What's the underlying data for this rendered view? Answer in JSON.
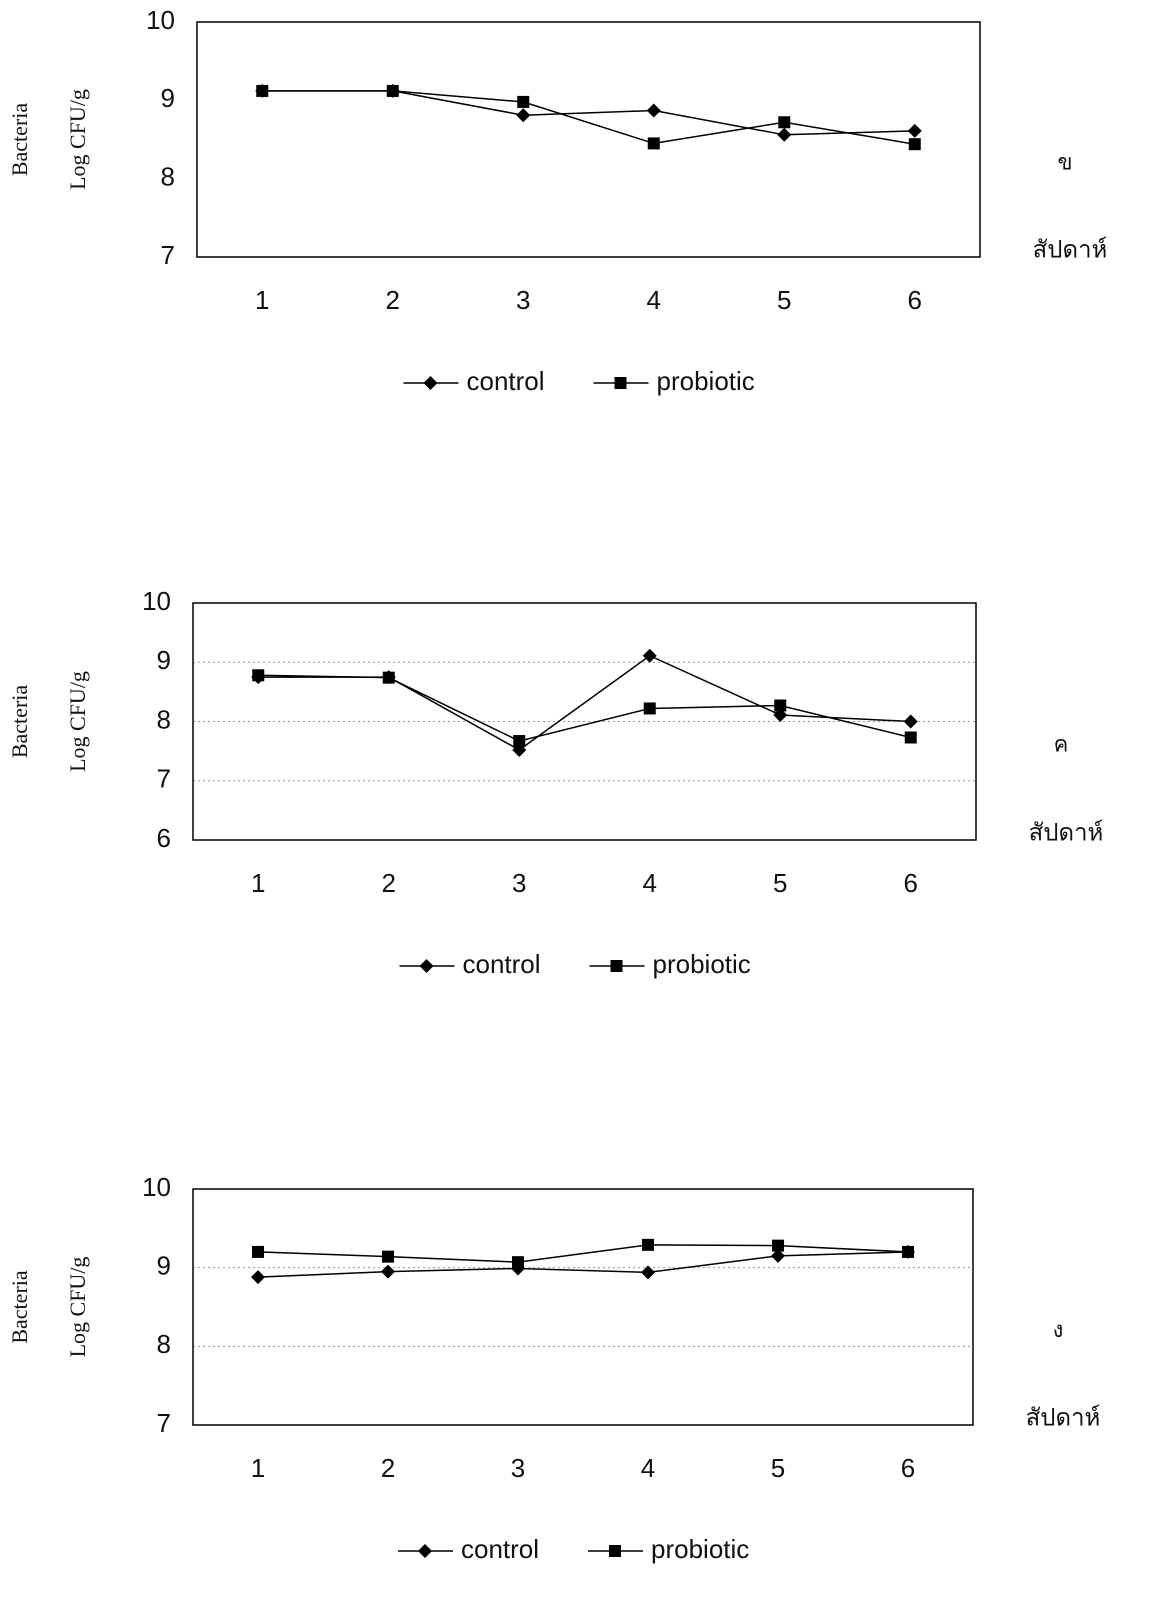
{
  "chart_data": [
    {
      "type": "line",
      "ylabel": [
        "Bacteria",
        "Log CFU/g"
      ],
      "xlabel": "สัปดาห์",
      "panel_label": "ข",
      "categories": [
        "1",
        "2",
        "3",
        "4",
        "5",
        "6"
      ],
      "series": [
        {
          "name": "control",
          "color": "#000000",
          "marker": "diamond",
          "values": [
            9.12,
            9.12,
            8.81,
            8.87,
            8.56,
            8.61
          ]
        },
        {
          "name": "probiotic",
          "color": "#000000",
          "marker": "square",
          "values": [
            9.12,
            9.12,
            8.98,
            8.45,
            8.72,
            8.44
          ]
        }
      ],
      "ylim": [
        7,
        10
      ],
      "yticks": [
        7,
        8,
        9,
        10
      ],
      "grid": false,
      "legend": "bottom"
    },
    {
      "type": "line",
      "ylabel": [
        "Bacteria",
        "Log CFU/g"
      ],
      "xlabel": "สัปดาห์",
      "panel_label": "ค",
      "categories": [
        "1",
        "2",
        "3",
        "4",
        "5",
        "6"
      ],
      "series": [
        {
          "name": "control",
          "color": "#000000",
          "marker": "diamond",
          "values": [
            8.75,
            8.75,
            7.52,
            9.11,
            8.11,
            8.0
          ]
        },
        {
          "name": "probiotic",
          "color": "#000000",
          "marker": "square",
          "values": [
            8.78,
            8.74,
            7.67,
            8.22,
            8.27,
            7.73
          ]
        }
      ],
      "ylim": [
        6,
        10
      ],
      "yticks": [
        6,
        7,
        8,
        9,
        10
      ],
      "grid": true,
      "legend": "bottom"
    },
    {
      "type": "line",
      "ylabel": [
        "Bacteria",
        "Log CFU/g"
      ],
      "xlabel": "สัปดาห์",
      "panel_label": "ง",
      "categories": [
        "1",
        "2",
        "3",
        "4",
        "5",
        "6"
      ],
      "series": [
        {
          "name": "control",
          "color": "#000000",
          "marker": "diamond",
          "values": [
            8.88,
            8.95,
            8.99,
            8.94,
            9.15,
            9.2
          ]
        },
        {
          "name": "probiotic",
          "color": "#000000",
          "marker": "square",
          "values": [
            9.2,
            9.14,
            9.07,
            9.29,
            9.28,
            9.2
          ]
        }
      ],
      "ylim": [
        7,
        10
      ],
      "yticks": [
        7,
        8,
        9,
        10
      ],
      "grid": true,
      "legend": "bottom"
    }
  ]
}
